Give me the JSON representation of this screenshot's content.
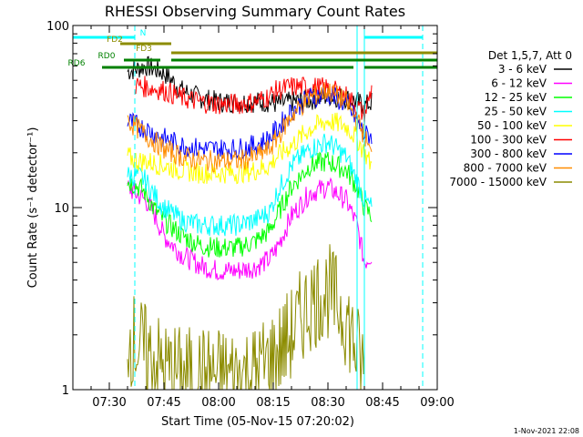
{
  "chart_data": {
    "type": "line",
    "title": "RHESSI Observing Summary Count Rates",
    "xlabel": "Start Time (05-Nov-15 07:20:02)",
    "ylabel": "Count Rate (s⁻¹ detector⁻¹)",
    "y_scale": "log",
    "ylim": [
      1,
      100
    ],
    "xlim": [
      "07:20",
      "09:00"
    ],
    "x_ticks": [
      "07:30",
      "07:45",
      "08:00",
      "08:15",
      "08:30",
      "08:45",
      "09:00"
    ],
    "y_ticks": [
      "1",
      "10",
      "100"
    ],
    "legend_title": "Det 1,5,7, Att 0",
    "legend_position": "right",
    "timestamp": "1-Nov-2021 22:08",
    "series": [
      {
        "name": "3 - 6 keV",
        "color": "#000000",
        "x": [
          "07:35",
          "07:38",
          "07:40",
          "07:45",
          "07:50",
          "07:55",
          "08:00",
          "08:05",
          "08:10",
          "08:14",
          "08:16",
          "08:20",
          "08:25",
          "08:30",
          "08:35",
          "08:38",
          "08:40",
          "08:42"
        ],
        "values": [
          56,
          58,
          60,
          55,
          44,
          40,
          38,
          38,
          38,
          38,
          37,
          38,
          39,
          41,
          40,
          38,
          36,
          38
        ]
      },
      {
        "name": "6 - 12 keV",
        "color": "#ff00ff",
        "x": [
          "07:35",
          "07:37",
          "07:40",
          "07:42",
          "07:45",
          "07:50",
          "07:55",
          "08:00",
          "08:05",
          "08:10",
          "08:14",
          "08:16",
          "08:20",
          "08:25",
          "08:30",
          "08:35",
          "08:38",
          "08:40",
          "08:42"
        ],
        "values": [
          13,
          12,
          11,
          9.5,
          7,
          5.5,
          4.8,
          4.5,
          4.5,
          4.7,
          5.2,
          6,
          9,
          12,
          13,
          11,
          8,
          5,
          5.5
        ]
      },
      {
        "name": "12 - 25 keV",
        "color": "#00ff00",
        "x": [
          "07:35",
          "07:38",
          "07:40",
          "07:42",
          "07:45",
          "07:50",
          "07:55",
          "08:00",
          "08:05",
          "08:10",
          "08:14",
          "08:16",
          "08:20",
          "08:25",
          "08:30",
          "08:35",
          "08:38",
          "08:40",
          "08:42"
        ],
        "values": [
          14,
          13,
          12,
          10,
          8.5,
          7,
          6.2,
          6,
          6,
          6.5,
          7.5,
          9,
          13,
          17,
          18,
          16,
          13,
          10,
          9
        ]
      },
      {
        "name": "25 - 50 keV",
        "color": "#00ffff",
        "x": [
          "07:35",
          "07:38",
          "07:40",
          "07:42",
          "07:45",
          "07:50",
          "07:55",
          "08:00",
          "08:05",
          "08:10",
          "08:14",
          "08:16",
          "08:20",
          "08:25",
          "08:30",
          "08:35",
          "08:38",
          "08:40",
          "08:42"
        ],
        "values": [
          15,
          15,
          14,
          12,
          10,
          8.5,
          8,
          8,
          8,
          8.5,
          9.5,
          12,
          17,
          21,
          23,
          19,
          14,
          11,
          10
        ]
      },
      {
        "name": "50 - 100 keV",
        "color": "#ffff00",
        "x": [
          "07:35",
          "07:38",
          "07:40",
          "07:45",
          "07:50",
          "07:55",
          "08:00",
          "08:05",
          "08:10",
          "08:14",
          "08:16",
          "08:20",
          "08:25",
          "08:30",
          "08:35",
          "08:38",
          "08:40",
          "08:42"
        ],
        "values": [
          19,
          18,
          18,
          17,
          16,
          15.5,
          15.5,
          15.5,
          16,
          17,
          19,
          22,
          27,
          30,
          28,
          24,
          20,
          17
        ]
      },
      {
        "name": "100 - 300 keV",
        "color": "#ff0000",
        "x": [
          "07:37",
          "07:40",
          "07:45",
          "07:50",
          "07:55",
          "08:00",
          "08:05",
          "08:10",
          "08:14",
          "08:16",
          "08:20",
          "08:25",
          "08:30",
          "08:35",
          "08:38",
          "08:40",
          "08:42"
        ],
        "values": [
          47,
          46,
          44,
          40,
          38,
          37,
          37,
          38,
          41,
          44,
          46,
          46,
          45,
          41,
          36,
          32,
          45
        ]
      },
      {
        "name": "300 - 800 keV",
        "color": "#0000ff",
        "x": [
          "07:35",
          "07:38",
          "07:40",
          "07:45",
          "07:50",
          "07:55",
          "08:00",
          "08:05",
          "08:10",
          "08:14",
          "08:16",
          "08:20",
          "08:25",
          "08:30",
          "08:35",
          "08:38",
          "08:40",
          "08:42"
        ],
        "values": [
          30,
          28,
          27,
          24,
          22,
          21,
          21,
          21,
          22,
          24,
          27,
          34,
          40,
          42,
          37,
          30,
          25,
          25
        ]
      },
      {
        "name": "800 - 7000 keV",
        "color": "#ff8c00",
        "x": [
          "07:35",
          "07:38",
          "07:40",
          "07:45",
          "07:50",
          "07:55",
          "08:00",
          "08:05",
          "08:10",
          "08:14",
          "08:16",
          "08:20",
          "08:25",
          "08:30",
          "08:35",
          "08:38",
          "08:40",
          "08:42"
        ],
        "values": [
          30,
          27,
          25,
          21,
          19,
          18,
          18,
          18,
          19,
          21,
          24,
          32,
          40,
          44,
          38,
          30,
          25,
          19
        ]
      },
      {
        "name": "7000 - 15000 keV",
        "color": "#8c8c00",
        "x": [
          "07:35",
          "07:40",
          "07:45",
          "07:50",
          "07:55",
          "08:00",
          "08:05",
          "08:10",
          "08:15",
          "08:20",
          "08:25",
          "08:30",
          "08:35",
          "08:38",
          "08:40"
        ],
        "values": [
          2.0,
          1.6,
          1.3,
          1.2,
          1.2,
          1.2,
          1.2,
          1.25,
          1.5,
          2.0,
          3.0,
          3.5,
          2.5,
          1.6,
          1.3
        ]
      }
    ],
    "flags": [
      {
        "name": "N",
        "color": "#00ffff",
        "segments": [
          [
            "07:20",
            "07:37"
          ],
          [
            "08:40",
            "08:56"
          ]
        ],
        "markers": [
          "07:37",
          "08:38",
          "08:40",
          "08:56"
        ]
      },
      {
        "name": "FD2",
        "color": "#8c8c00",
        "segments": [
          [
            "07:33",
            "07:47"
          ]
        ]
      },
      {
        "name": "FD3",
        "color": "#8c8c00",
        "segments": [
          [
            "07:47",
            "09:00"
          ]
        ]
      },
      {
        "name": "RD0",
        "color": "#008000",
        "segments": [
          [
            "07:34",
            "07:44"
          ],
          [
            "07:47",
            "09:00"
          ]
        ]
      },
      {
        "name": "RD6",
        "color": "#008000",
        "segments": [
          [
            "07:28",
            "08:15"
          ],
          [
            "08:15",
            "08:37"
          ],
          [
            "08:40",
            "09:00"
          ]
        ]
      }
    ]
  }
}
